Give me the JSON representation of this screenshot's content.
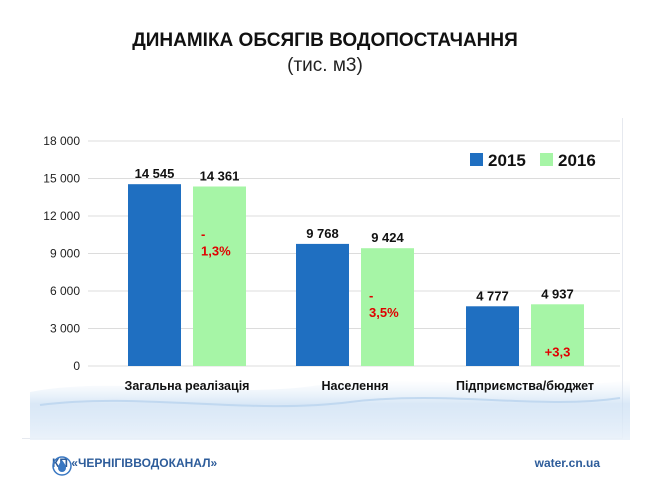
{
  "slide": {
    "title": "ДИНАМІКА ОБСЯГІВ ВОДОПОСТАЧАННЯ",
    "subtitle": "(тис. м3)",
    "footer_left": "КП «ЧЕРНІГІВВОДОКАНАЛ»",
    "footer_right": "water.cn.ua",
    "logo_icon": "water-drop-icon"
  },
  "chart_data": {
    "type": "bar",
    "title": "ДИНАМІКА ОБСЯГІВ ВОДОПОСТАЧАННЯ",
    "subtitle": "(тис. м3)",
    "categories": [
      "Загальна реалізація",
      "Населення",
      "Підприємства/бюджет"
    ],
    "series": [
      {
        "name": "2015",
        "color": "#1f6fc1",
        "values": [
          14545,
          9768,
          4777
        ],
        "labels": [
          "14 545",
          "9 768",
          "4 777"
        ]
      },
      {
        "name": "2016",
        "color": "#a6f5a6",
        "values": [
          14361,
          9424,
          4937
        ],
        "labels": [
          "14 361",
          "9 424",
          "4 937"
        ]
      }
    ],
    "change_labels": [
      [
        "-",
        "1,3%"
      ],
      [
        "-",
        "3,5%"
      ],
      [
        "+3,3"
      ]
    ],
    "ylim": [
      0,
      18000
    ],
    "yticks": [
      0,
      3000,
      6000,
      9000,
      12000,
      15000,
      18000
    ],
    "ytick_labels": [
      "0",
      "3 000",
      "6 000",
      "9 000",
      "12 000",
      "15 000",
      "18 000"
    ],
    "grid": true,
    "legend_position": "top-right",
    "colors": {
      "accent_red": "#e00000",
      "grid": "#dcdcdc"
    }
  }
}
